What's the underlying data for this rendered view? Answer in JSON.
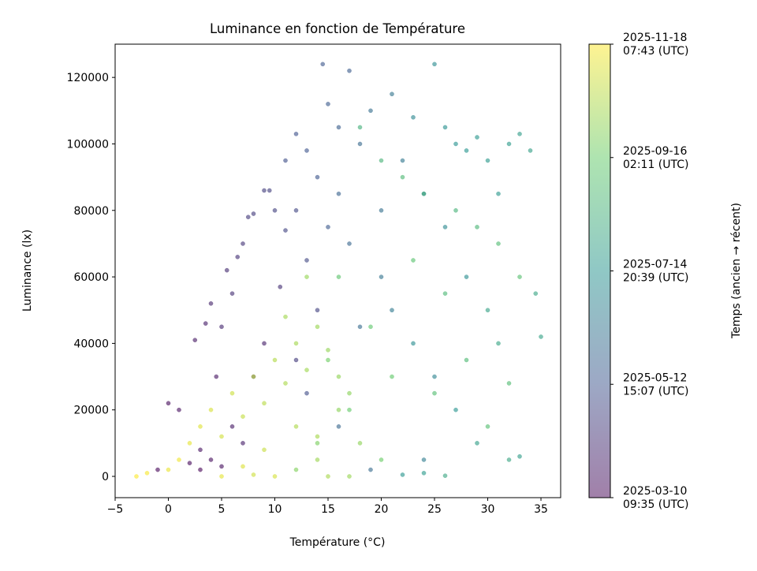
{
  "chart_data": {
    "type": "scatter",
    "title": "Luminance en fonction de Température",
    "xlabel": "Température (°C)",
    "ylabel": "Luminance (lx)",
    "xlim": [
      -5,
      36.85
    ],
    "ylim": [
      -6400,
      130000
    ],
    "x_ticks": [
      "−5",
      "0",
      "5",
      "10",
      "15",
      "20",
      "25",
      "30",
      "35"
    ],
    "x_tick_values": [
      -5,
      0,
      5,
      10,
      15,
      20,
      25,
      30,
      35
    ],
    "y_ticks": [
      "0",
      "20000",
      "40000",
      "60000",
      "80000",
      "100000",
      "120000"
    ],
    "y_tick_values": [
      0,
      20000,
      40000,
      60000,
      80000,
      100000,
      120000
    ],
    "grid": false,
    "colormap": "viridis",
    "point_alpha": 0.6,
    "colorbar": {
      "label": "Temps (ancien → récent)",
      "range": [
        "2025-03-10T09:35Z",
        "2025-11-18T07:43Z"
      ],
      "ticks": [
        {
          "line1": "2025-03-10",
          "line2": "09:35 (UTC)"
        },
        {
          "line1": "2025-05-12",
          "line2": "15:07 (UTC)"
        },
        {
          "line1": "2025-07-14",
          "line2": "20:39 (UTC)"
        },
        {
          "line1": "2025-09-16",
          "line2": "02:11 (UTC)"
        },
        {
          "line1": "2025-11-18",
          "line2": "07:43 (UTC)"
        }
      ],
      "colors": [
        "#440154",
        "#3b528b",
        "#21918c",
        "#5ec962",
        "#fde725"
      ]
    },
    "points_columns": [
      "temperature_c",
      "luminance_lx",
      "time"
    ],
    "points": [
      [
        -1,
        2000,
        "2025-03-12"
      ],
      [
        0,
        22000,
        "2025-03-15"
      ],
      [
        1,
        20000,
        "2025-03-18"
      ],
      [
        2,
        4000,
        "2025-03-14"
      ],
      [
        3,
        8000,
        "2025-03-20"
      ],
      [
        2.5,
        41000,
        "2025-03-25"
      ],
      [
        3.5,
        46000,
        "2025-03-28"
      ],
      [
        4,
        52000,
        "2025-04-02"
      ],
      [
        4.5,
        30000,
        "2025-03-22"
      ],
      [
        5,
        45000,
        "2025-04-05"
      ],
      [
        5.5,
        62000,
        "2025-04-08"
      ],
      [
        6,
        55000,
        "2025-04-10"
      ],
      [
        6.5,
        66000,
        "2025-04-12"
      ],
      [
        7,
        70000,
        "2025-04-15"
      ],
      [
        7.5,
        78000,
        "2025-04-18"
      ],
      [
        8,
        79000,
        "2025-04-20"
      ],
      [
        9,
        86000,
        "2025-04-22"
      ],
      [
        9.5,
        86000,
        "2025-04-24"
      ],
      [
        10,
        80000,
        "2025-04-25"
      ],
      [
        11,
        74000,
        "2025-04-28"
      ],
      [
        12,
        80000,
        "2025-04-30"
      ],
      [
        10.5,
        57000,
        "2025-04-10"
      ],
      [
        9,
        40000,
        "2025-03-30"
      ],
      [
        8,
        30000,
        "2025-04-03"
      ],
      [
        6,
        15000,
        "2025-03-26"
      ],
      [
        4,
        5000,
        "2025-03-17"
      ],
      [
        7,
        10000,
        "2025-03-29"
      ],
      [
        12,
        35000,
        "2025-04-20"
      ],
      [
        13,
        65000,
        "2025-05-01"
      ],
      [
        14,
        50000,
        "2025-04-26"
      ],
      [
        3,
        2000,
        "2025-03-11"
      ],
      [
        5,
        3000,
        "2025-03-19"
      ],
      [
        14.5,
        124000,
        "2025-05-15"
      ],
      [
        17,
        122000,
        "2025-05-20"
      ],
      [
        15,
        112000,
        "2025-05-18"
      ],
      [
        16,
        105000,
        "2025-05-22"
      ],
      [
        12,
        103000,
        "2025-05-10"
      ],
      [
        13,
        98000,
        "2025-05-12"
      ],
      [
        11,
        95000,
        "2025-05-08"
      ],
      [
        14,
        90000,
        "2025-05-14"
      ],
      [
        16,
        85000,
        "2025-05-25"
      ],
      [
        18,
        100000,
        "2025-06-01"
      ],
      [
        19,
        110000,
        "2025-06-05"
      ],
      [
        15,
        75000,
        "2025-05-16"
      ],
      [
        17,
        70000,
        "2025-05-28"
      ],
      [
        20,
        60000,
        "2025-06-10"
      ],
      [
        18,
        45000,
        "2025-06-03"
      ],
      [
        13,
        25000,
        "2025-05-06"
      ],
      [
        16,
        15000,
        "2025-05-30"
      ],
      [
        21,
        115000,
        "2025-06-12"
      ],
      [
        22,
        95000,
        "2025-06-15"
      ],
      [
        20,
        80000,
        "2025-06-08"
      ],
      [
        24,
        5000,
        "2025-06-20"
      ],
      [
        19,
        2000,
        "2025-06-02"
      ],
      [
        23,
        108000,
        "2025-07-01"
      ],
      [
        25,
        124000,
        "2025-07-05"
      ],
      [
        26,
        105000,
        "2025-07-10"
      ],
      [
        27,
        100000,
        "2025-07-12"
      ],
      [
        28,
        98000,
        "2025-07-15"
      ],
      [
        29,
        102000,
        "2025-07-18"
      ],
      [
        30,
        95000,
        "2025-07-20"
      ],
      [
        32,
        100000,
        "2025-07-22"
      ],
      [
        33,
        103000,
        "2025-07-25"
      ],
      [
        34,
        98000,
        "2025-07-28"
      ],
      [
        24,
        85000,
        "2025-06-25"
      ],
      [
        26,
        75000,
        "2025-07-03"
      ],
      [
        28,
        60000,
        "2025-07-08"
      ],
      [
        30,
        50000,
        "2025-07-30"
      ],
      [
        31,
        40000,
        "2025-08-01"
      ],
      [
        25,
        30000,
        "2025-06-28"
      ],
      [
        27,
        20000,
        "2025-07-14"
      ],
      [
        29,
        10000,
        "2025-07-26"
      ],
      [
        32,
        5000,
        "2025-08-03"
      ],
      [
        33,
        6000,
        "2025-07-24"
      ],
      [
        22,
        500,
        "2025-07-16"
      ],
      [
        24,
        1000,
        "2025-07-21"
      ],
      [
        26,
        200,
        "2025-08-05"
      ],
      [
        21,
        50000,
        "2025-06-18"
      ],
      [
        23,
        40000,
        "2025-07-07"
      ],
      [
        35,
        42000,
        "2025-07-29"
      ],
      [
        34.5,
        55000,
        "2025-08-02"
      ],
      [
        31,
        85000,
        "2025-07-19"
      ],
      [
        18,
        105000,
        "2025-08-15"
      ],
      [
        20,
        95000,
        "2025-08-20"
      ],
      [
        22,
        90000,
        "2025-08-25"
      ],
      [
        24,
        85000,
        "2025-08-12"
      ],
      [
        27,
        80000,
        "2025-08-18"
      ],
      [
        29,
        75000,
        "2025-08-22"
      ],
      [
        31,
        70000,
        "2025-08-28"
      ],
      [
        33,
        60000,
        "2025-09-02"
      ],
      [
        23,
        65000,
        "2025-09-05"
      ],
      [
        19,
        45000,
        "2025-09-10"
      ],
      [
        21,
        30000,
        "2025-09-12"
      ],
      [
        25,
        25000,
        "2025-08-30"
      ],
      [
        28,
        35000,
        "2025-08-26"
      ],
      [
        30,
        15000,
        "2025-09-01"
      ],
      [
        17,
        20000,
        "2025-09-15"
      ],
      [
        15,
        35000,
        "2025-09-20"
      ],
      [
        14,
        10000,
        "2025-09-25"
      ],
      [
        20,
        5000,
        "2025-09-18"
      ],
      [
        26,
        55000,
        "2025-08-24"
      ],
      [
        32,
        28000,
        "2025-08-29"
      ],
      [
        16,
        60000,
        "2025-09-08"
      ],
      [
        12,
        2000,
        "2025-09-28"
      ],
      [
        -3,
        0,
        "2025-11-17"
      ],
      [
        -2,
        1000,
        "2025-11-15"
      ],
      [
        0,
        2000,
        "2025-11-10"
      ],
      [
        1,
        5000,
        "2025-11-12"
      ],
      [
        2,
        10000,
        "2025-11-08"
      ],
      [
        3,
        15000,
        "2025-11-05"
      ],
      [
        4,
        20000,
        "2025-11-02"
      ],
      [
        5,
        12000,
        "2025-10-30"
      ],
      [
        6,
        25000,
        "2025-10-28"
      ],
      [
        7,
        18000,
        "2025-10-25"
      ],
      [
        8,
        30000,
        "2025-10-22"
      ],
      [
        9,
        22000,
        "2025-10-20"
      ],
      [
        10,
        35000,
        "2025-10-18"
      ],
      [
        11,
        28000,
        "2025-10-15"
      ],
      [
        12,
        40000,
        "2025-10-12"
      ],
      [
        13,
        32000,
        "2025-10-10"
      ],
      [
        14,
        45000,
        "2025-10-08"
      ],
      [
        15,
        38000,
        "2025-10-05"
      ],
      [
        16,
        20000,
        "2025-10-02"
      ],
      [
        17,
        25000,
        "2025-10-01"
      ],
      [
        18,
        10000,
        "2025-10-03"
      ],
      [
        12,
        15000,
        "2025-10-16"
      ],
      [
        9,
        8000,
        "2025-10-26"
      ],
      [
        14,
        5000,
        "2025-10-09"
      ],
      [
        10,
        0,
        "2025-11-01"
      ],
      [
        15,
        0,
        "2025-10-14"
      ],
      [
        5,
        0,
        "2025-11-07"
      ],
      [
        8,
        500,
        "2025-10-29"
      ],
      [
        13,
        60000,
        "2025-10-06"
      ],
      [
        11,
        48000,
        "2025-10-11"
      ],
      [
        16,
        30000,
        "2025-10-04"
      ],
      [
        7,
        3000,
        "2025-11-04"
      ],
      [
        14,
        12000,
        "2025-10-13"
      ],
      [
        17,
        0,
        "2025-10-07"
      ]
    ]
  }
}
